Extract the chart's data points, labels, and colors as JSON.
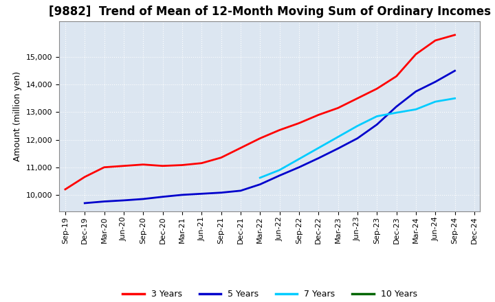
{
  "title": "[9882]  Trend of Mean of 12-Month Moving Sum of Ordinary Incomes",
  "ylabel": "Amount (million yen)",
  "background_color": "#ffffff",
  "plot_bg_color": "#dce6f1",
  "grid_color": "#ffffff",
  "series": {
    "3 Years": {
      "color": "#ff0000",
      "x": [
        0,
        1,
        2,
        3,
        4,
        5,
        6,
        7,
        8,
        9,
        10,
        11,
        12,
        13,
        14,
        15,
        16,
        17,
        18,
        19,
        20
      ],
      "y": [
        10200,
        10650,
        11000,
        11050,
        11100,
        11050,
        11080,
        11150,
        11350,
        11700,
        12050,
        12350,
        12600,
        12900,
        13150,
        13500,
        13850,
        14300,
        15100,
        15600,
        15800
      ]
    },
    "5 Years": {
      "color": "#0000cc",
      "x": [
        1,
        2,
        3,
        4,
        5,
        6,
        7,
        8,
        9,
        10,
        11,
        12,
        13,
        14,
        15,
        16,
        17,
        18,
        19,
        20
      ],
      "y": [
        9700,
        9760,
        9800,
        9850,
        9930,
        10000,
        10040,
        10080,
        10150,
        10380,
        10700,
        11000,
        11330,
        11680,
        12050,
        12550,
        13200,
        13750,
        14100,
        14500
      ]
    },
    "7 Years": {
      "color": "#00ccff",
      "x": [
        10,
        11,
        12,
        13,
        14,
        15,
        16,
        17,
        18,
        19,
        20
      ],
      "y": [
        10620,
        10900,
        11300,
        11700,
        12100,
        12500,
        12850,
        12980,
        13100,
        13380,
        13500
      ]
    },
    "10 Years": {
      "color": "#006600",
      "x": [],
      "y": []
    }
  },
  "x_labels": [
    "Sep-19",
    "Dec-19",
    "Mar-20",
    "Jun-20",
    "Sep-20",
    "Dec-20",
    "Mar-21",
    "Jun-21",
    "Sep-21",
    "Dec-21",
    "Mar-22",
    "Jun-22",
    "Sep-22",
    "Dec-22",
    "Mar-23",
    "Jun-23",
    "Sep-23",
    "Dec-23",
    "Mar-24",
    "Jun-24",
    "Sep-24",
    "Dec-24"
  ],
  "ylim": [
    9400,
    16300
  ],
  "yticks": [
    10000,
    11000,
    12000,
    13000,
    14000,
    15000
  ],
  "title_fontsize": 12,
  "axis_fontsize": 9,
  "tick_fontsize": 8
}
